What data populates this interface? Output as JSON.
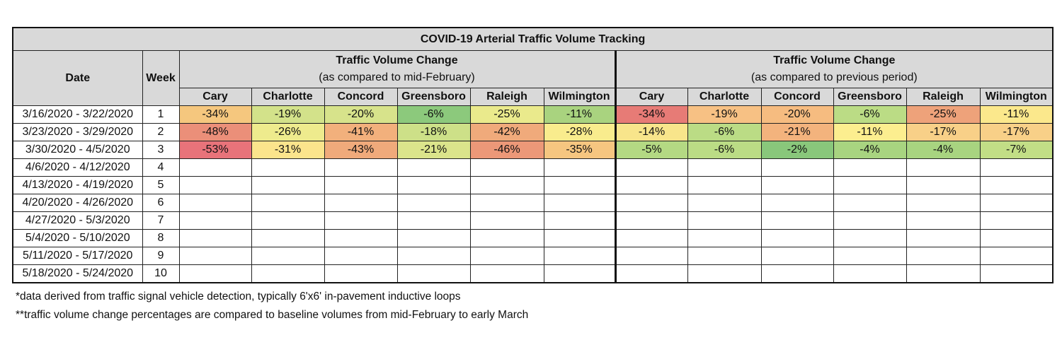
{
  "title": "COVID-19 Arterial Traffic Volume Tracking",
  "headers": {
    "date": "Date",
    "week": "Week",
    "group1_title": "Traffic Volume Change",
    "group1_sub": "(as compared to mid-February)",
    "group2_title": "Traffic Volume Change",
    "group2_sub": "(as compared to previous period)"
  },
  "cities": [
    "Cary",
    "Charlotte",
    "Concord",
    "Greensboro",
    "Raleigh",
    "Wilmington"
  ],
  "rows": [
    {
      "date": "3/16/2020 - 3/22/2020",
      "week": "1",
      "g1": [
        {
          "v": "-34%",
          "c": "#f5c77e"
        },
        {
          "v": "-19%",
          "c": "#d3e28a"
        },
        {
          "v": "-20%",
          "c": "#d7e38b"
        },
        {
          "v": "-6%",
          "c": "#8cc97c"
        },
        {
          "v": "-25%",
          "c": "#eaea8c"
        },
        {
          "v": "-11%",
          "c": "#a9d37f"
        }
      ],
      "g2": [
        {
          "v": "-34%",
          "c": "#e77b76"
        },
        {
          "v": "-19%",
          "c": "#f7c184"
        },
        {
          "v": "-20%",
          "c": "#f6bc80"
        },
        {
          "v": "-6%",
          "c": "#bbdc85"
        },
        {
          "v": "-25%",
          "c": "#eea27a"
        },
        {
          "v": "-11%",
          "c": "#fbe88c"
        }
      ]
    },
    {
      "date": "3/23/2020 - 3/29/2020",
      "week": "2",
      "g1": [
        {
          "v": "-48%",
          "c": "#eb8f79"
        },
        {
          "v": "-26%",
          "c": "#eeeb8d"
        },
        {
          "v": "-41%",
          "c": "#f2b07c"
        },
        {
          "v": "-18%",
          "c": "#cde088"
        },
        {
          "v": "-42%",
          "c": "#f0aa7b"
        },
        {
          "v": "-28%",
          "c": "#f9ec8d"
        }
      ],
      "g2": [
        {
          "v": "-14%",
          "c": "#f8e58b"
        },
        {
          "v": "-6%",
          "c": "#bbdc85"
        },
        {
          "v": "-21%",
          "c": "#f3b37d"
        },
        {
          "v": "-11%",
          "c": "#fcee8f"
        },
        {
          "v": "-17%",
          "c": "#f8d088"
        },
        {
          "v": "-17%",
          "c": "#f8d088"
        }
      ]
    },
    {
      "date": "3/30/2020 - 4/5/2020",
      "week": "3",
      "g1": [
        {
          "v": "-53%",
          "c": "#e8737a"
        },
        {
          "v": "-31%",
          "c": "#fbe48c"
        },
        {
          "v": "-43%",
          "c": "#f0aa7b"
        },
        {
          "v": "-21%",
          "c": "#dbe48b"
        },
        {
          "v": "-46%",
          "c": "#ec9878"
        },
        {
          "v": "-35%",
          "c": "#f6c680"
        }
      ],
      "g2": [
        {
          "v": "-5%",
          "c": "#b4d983"
        },
        {
          "v": "-6%",
          "c": "#bbdc85"
        },
        {
          "v": "-2%",
          "c": "#89c77b"
        },
        {
          "v": "-4%",
          "c": "#a8d480"
        },
        {
          "v": "-4%",
          "c": "#a8d480"
        },
        {
          "v": "-7%",
          "c": "#c2de86"
        }
      ]
    },
    {
      "date": "4/6/2020 - 4/12/2020",
      "week": "4",
      "g1": [],
      "g2": []
    },
    {
      "date": "4/13/2020 - 4/19/2020",
      "week": "5",
      "g1": [],
      "g2": []
    },
    {
      "date": "4/20/2020 - 4/26/2020",
      "week": "6",
      "g1": [],
      "g2": []
    },
    {
      "date": "4/27/2020 - 5/3/2020",
      "week": "7",
      "g1": [],
      "g2": []
    },
    {
      "date": "5/4/2020 - 5/10/2020",
      "week": "8",
      "g1": [],
      "g2": []
    },
    {
      "date": "5/11/2020 - 5/17/2020",
      "week": "9",
      "g1": [],
      "g2": []
    },
    {
      "date": "5/18/2020 - 5/24/2020",
      "week": "10",
      "g1": [],
      "g2": []
    }
  ],
  "footnotes": [
    "*data derived from traffic signal vehicle detection, typically 6'x6' in-pavement inductive loops",
    "**traffic volume change percentages are compared to baseline volumes from mid-February to early March"
  ]
}
